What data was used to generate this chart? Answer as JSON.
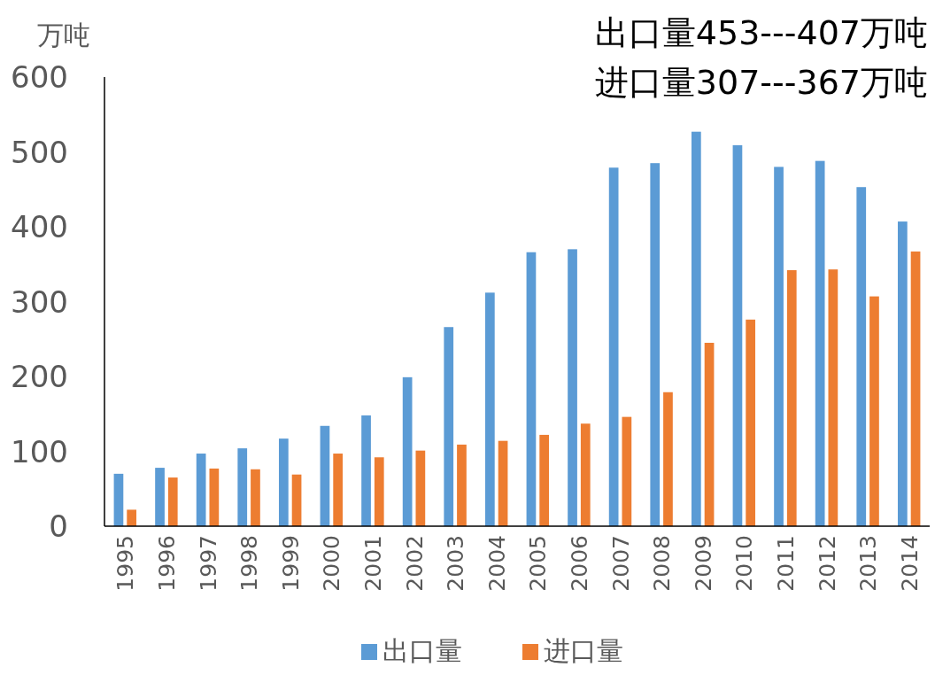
{
  "chart_data": {
    "type": "bar",
    "title": "出口量453---407万吨",
    "subtitle": "进口量307---367万吨",
    "ylabel": "万吨",
    "categories": [
      "1995",
      "1996",
      "1997",
      "1998",
      "1999",
      "2000",
      "2001",
      "2002",
      "2003",
      "2004",
      "2005",
      "2006",
      "2007",
      "2008",
      "2009",
      "2010",
      "2011",
      "2012",
      "2013",
      "2014"
    ],
    "series": [
      {
        "name": "出口量",
        "color": "#5b9bd5",
        "values": [
          70,
          78,
          97,
          104,
          117,
          134,
          148,
          199,
          266,
          312,
          366,
          370,
          479,
          485,
          527,
          509,
          480,
          488,
          453,
          407
        ]
      },
      {
        "name": "进口量",
        "color": "#ed7d31",
        "values": [
          22,
          65,
          77,
          76,
          69,
          97,
          92,
          101,
          109,
          114,
          122,
          137,
          146,
          179,
          245,
          276,
          342,
          343,
          307,
          367
        ]
      }
    ],
    "ylim": [
      0,
      600
    ],
    "yticks": [
      0,
      100,
      200,
      300,
      400,
      500,
      600
    ],
    "grid": false,
    "legend": "bottom"
  }
}
